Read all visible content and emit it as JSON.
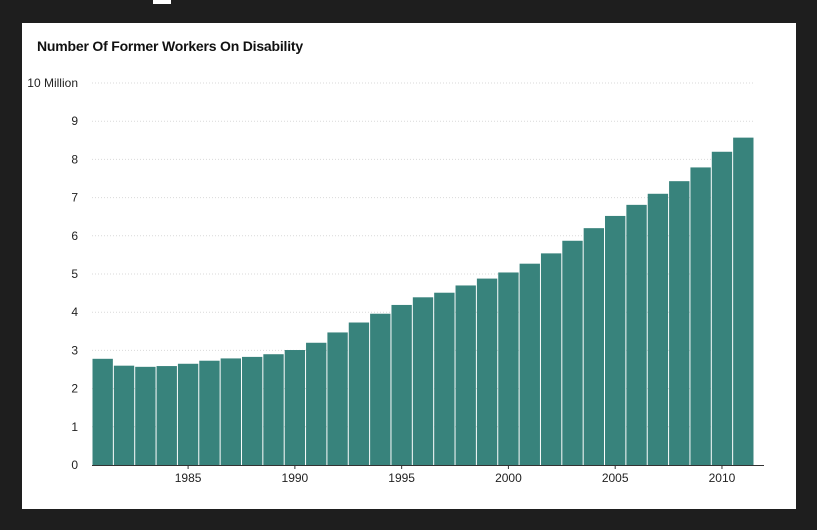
{
  "chart_data": {
    "type": "bar",
    "title": "Number Of Former Workers On Disability",
    "xlabel": "",
    "ylabel": "",
    "categories": [
      "1981",
      "1982",
      "1983",
      "1984",
      "1985",
      "1986",
      "1987",
      "1988",
      "1989",
      "1990",
      "1991",
      "1992",
      "1993",
      "1994",
      "1995",
      "1996",
      "1997",
      "1998",
      "1999",
      "2000",
      "2001",
      "2002",
      "2003",
      "2004",
      "2005",
      "2006",
      "2007",
      "2008",
      "2009",
      "2010",
      "2011"
    ],
    "values": [
      2.78,
      2.6,
      2.57,
      2.59,
      2.65,
      2.73,
      2.79,
      2.83,
      2.9,
      3.01,
      3.2,
      3.47,
      3.73,
      3.96,
      4.19,
      4.39,
      4.51,
      4.7,
      4.88,
      5.04,
      5.27,
      5.54,
      5.87,
      6.2,
      6.52,
      6.81,
      7.1,
      7.43,
      7.79,
      8.2,
      8.57
    ],
    "ylim": [
      0,
      10
    ],
    "y_ticks": [
      "0",
      "1",
      "2",
      "3",
      "4",
      "5",
      "6",
      "7",
      "8",
      "9",
      "10 Million"
    ],
    "x_ticks": [
      "1985",
      "1990",
      "1995",
      "2000",
      "2005",
      "2010"
    ],
    "bar_color": "#38837c",
    "grid": true
  }
}
